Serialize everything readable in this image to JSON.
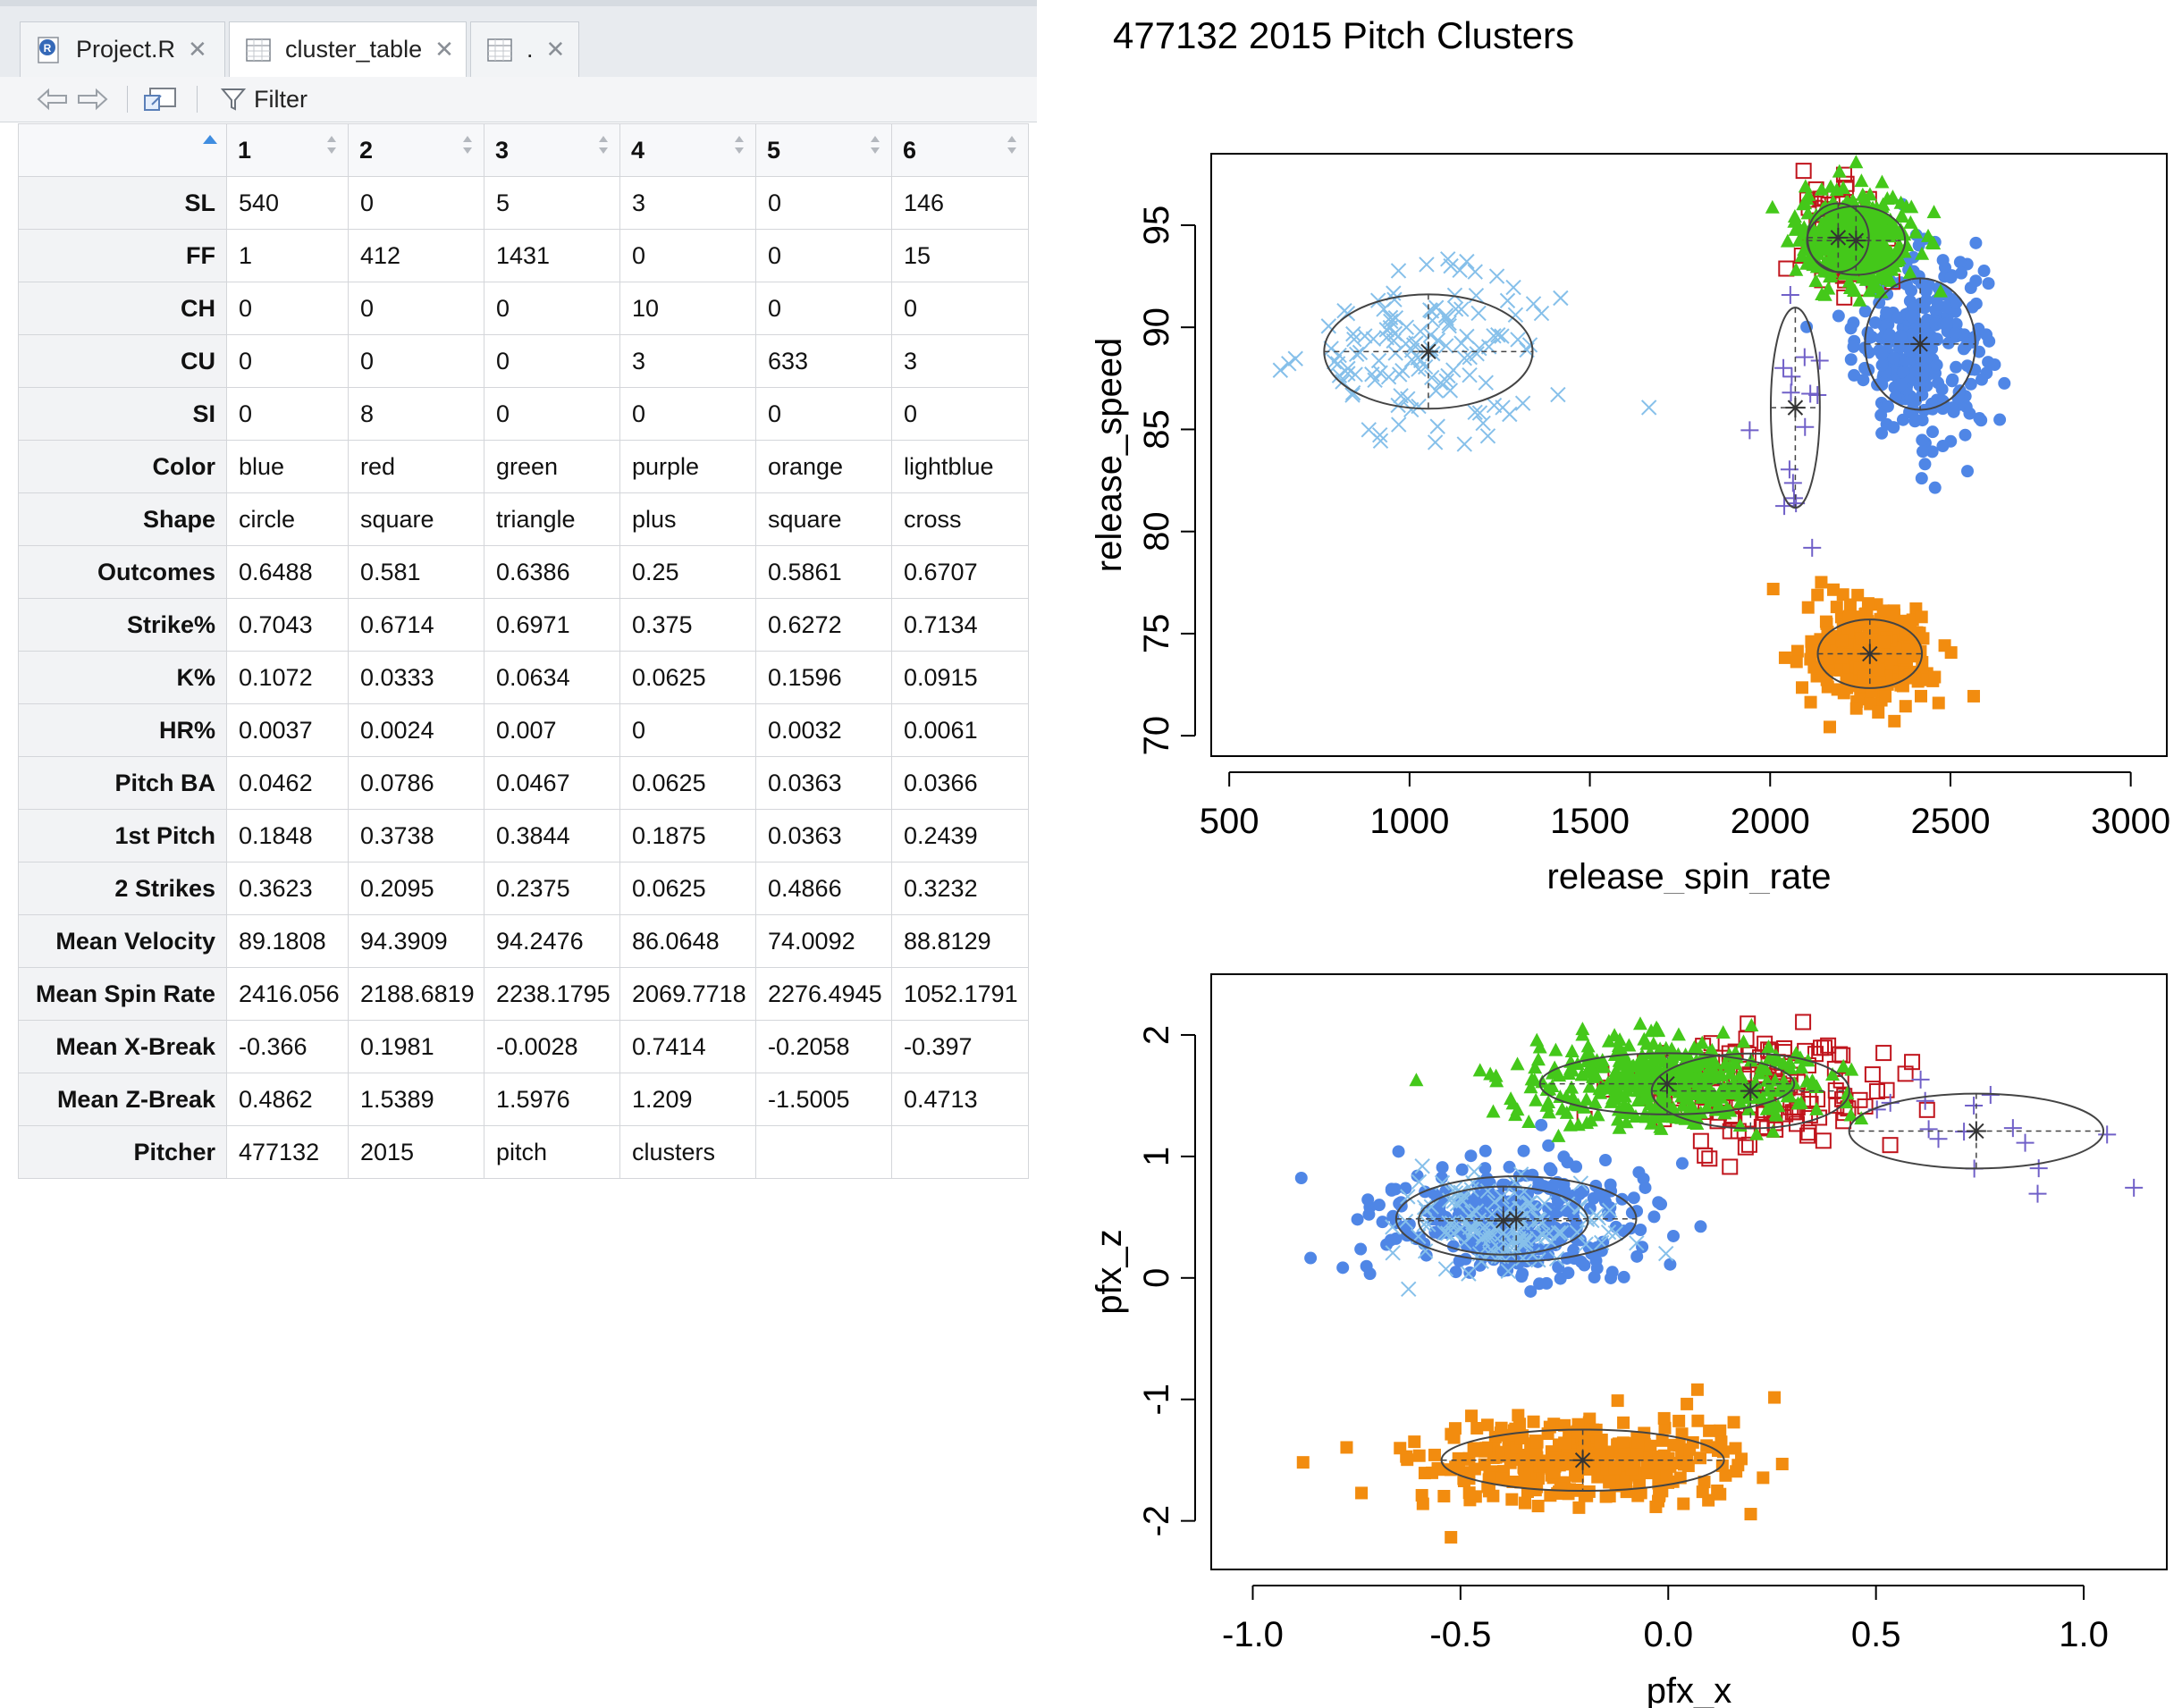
{
  "tabs": [
    {
      "label": "Project.R",
      "icon": "r-file-icon"
    },
    {
      "label": "cluster_table",
      "icon": "table-icon"
    },
    {
      "label": ".",
      "icon": "table-icon"
    }
  ],
  "toolbar": {
    "filter_label": "Filter"
  },
  "table": {
    "columns": [
      "1",
      "2",
      "3",
      "4",
      "5",
      "6"
    ],
    "rows": [
      {
        "label": "SL",
        "values": [
          "540",
          "0",
          "5",
          "3",
          "0",
          "146"
        ]
      },
      {
        "label": "FF",
        "values": [
          "1",
          "412",
          "1431",
          "0",
          "0",
          "15"
        ]
      },
      {
        "label": "CH",
        "values": [
          "0",
          "0",
          "0",
          "10",
          "0",
          "0"
        ]
      },
      {
        "label": "CU",
        "values": [
          "0",
          "0",
          "0",
          "3",
          "633",
          "3"
        ]
      },
      {
        "label": "SI",
        "values": [
          "0",
          "8",
          "0",
          "0",
          "0",
          "0"
        ]
      },
      {
        "label": "Color",
        "values": [
          "blue",
          "red",
          "green",
          "purple",
          "orange",
          "lightblue"
        ]
      },
      {
        "label": "Shape",
        "values": [
          "circle",
          "square",
          "triangle",
          "plus",
          "square",
          "cross"
        ]
      },
      {
        "label": "Outcomes",
        "values": [
          "0.6488",
          "0.581",
          "0.6386",
          "0.25",
          "0.5861",
          "0.6707"
        ]
      },
      {
        "label": "Strike%",
        "values": [
          "0.7043",
          "0.6714",
          "0.6971",
          "0.375",
          "0.6272",
          "0.7134"
        ]
      },
      {
        "label": "K%",
        "values": [
          "0.1072",
          "0.0333",
          "0.0634",
          "0.0625",
          "0.1596",
          "0.0915"
        ]
      },
      {
        "label": "HR%",
        "values": [
          "0.0037",
          "0.0024",
          "0.007",
          "0",
          "0.0032",
          "0.0061"
        ]
      },
      {
        "label": "Pitch BA",
        "values": [
          "0.0462",
          "0.0786",
          "0.0467",
          "0.0625",
          "0.0363",
          "0.0366"
        ]
      },
      {
        "label": "1st Pitch",
        "values": [
          "0.1848",
          "0.3738",
          "0.3844",
          "0.1875",
          "0.0363",
          "0.2439"
        ]
      },
      {
        "label": "2 Strikes",
        "values": [
          "0.3623",
          "0.2095",
          "0.2375",
          "0.0625",
          "0.4866",
          "0.3232"
        ]
      },
      {
        "label": "Mean Velocity",
        "values": [
          "89.1808",
          "94.3909",
          "94.2476",
          "86.0648",
          "74.0092",
          "88.8129"
        ]
      },
      {
        "label": "Mean Spin Rate",
        "values": [
          "2416.056",
          "2188.6819",
          "2238.1795",
          "2069.7718",
          "2276.4945",
          "1052.1791"
        ]
      },
      {
        "label": "Mean X-Break",
        "values": [
          "-0.366",
          "0.1981",
          "-0.0028",
          "0.7414",
          "-0.2058",
          "-0.397"
        ]
      },
      {
        "label": "Mean Z-Break",
        "values": [
          "0.4862",
          "1.5389",
          "1.5976",
          "1.209",
          "-1.5005",
          "0.4713"
        ]
      },
      {
        "label": "Pitcher",
        "values": [
          "477132",
          "2015",
          "pitch",
          "clusters",
          "",
          ""
        ]
      }
    ]
  },
  "chart_data": [
    {
      "type": "scatter",
      "title": "477132 2015 Pitch Clusters",
      "xlabel": "release_spin_rate",
      "ylabel": "release_speed",
      "xlim": [
        450,
        3100
      ],
      "ylim": [
        69,
        98.5
      ],
      "xticks": [
        "500",
        "1000",
        "1500",
        "2000",
        "2500",
        "3000"
      ],
      "yticks": [
        "70",
        "75",
        "80",
        "85",
        "90",
        "95"
      ],
      "grid": false,
      "series": [
        {
          "cluster": "1",
          "color": "#4f86e6",
          "shape": "circle",
          "center": [
            2416.056,
            89.1808
          ],
          "spread": [
            90,
            2.3
          ],
          "n": 300
        },
        {
          "cluster": "2",
          "color": "#c0141c",
          "shape": "square",
          "center": [
            2188.6819,
            94.3909
          ],
          "spread": [
            50,
            1.2
          ],
          "n": 90
        },
        {
          "cluster": "3",
          "color": "#44c81a",
          "shape": "triangle",
          "center": [
            2238.1795,
            94.2476
          ],
          "spread": [
            80,
            1.2
          ],
          "n": 420
        },
        {
          "cluster": "4",
          "color": "#7060c8",
          "shape": "plus",
          "center": [
            2069.7718,
            86.0648
          ],
          "spread": [
            40,
            3.5
          ],
          "n": 16
        },
        {
          "cluster": "5",
          "color": "#f28c0f",
          "shape": "square",
          "center": [
            2276.4945,
            74.0092
          ],
          "spread": [
            85,
            1.2
          ],
          "n": 320
        },
        {
          "cluster": "6",
          "color": "#86c0ea",
          "shape": "cross",
          "center": [
            1052.1791,
            88.8129
          ],
          "spread": [
            170,
            2.0
          ],
          "n": 130
        }
      ]
    },
    {
      "type": "scatter",
      "title": "",
      "xlabel": "pfx_x",
      "ylabel": "pfx_z",
      "xlim": [
        -1.1,
        1.2
      ],
      "ylim": [
        -2.4,
        2.5
      ],
      "xticks": [
        "-1.0",
        "-0.5",
        "0.0",
        "0.5",
        "1.0"
      ],
      "yticks": [
        "-2",
        "-1",
        "0",
        "1",
        "2"
      ],
      "grid": false,
      "series": [
        {
          "cluster": "1",
          "color": "#4f86e6",
          "shape": "circle",
          "center": [
            -0.366,
            0.4862
          ],
          "spread": [
            0.17,
            0.25
          ],
          "n": 300
        },
        {
          "cluster": "2",
          "color": "#c0141c",
          "shape": "square",
          "center": [
            0.1981,
            1.5389
          ],
          "spread": [
            0.14,
            0.22
          ],
          "n": 140
        },
        {
          "cluster": "3",
          "color": "#44c81a",
          "shape": "triangle",
          "center": [
            -0.0028,
            1.5976
          ],
          "spread": [
            0.18,
            0.18
          ],
          "n": 450
        },
        {
          "cluster": "4",
          "color": "#7060c8",
          "shape": "plus",
          "center": [
            0.7414,
            1.209
          ],
          "spread": [
            0.18,
            0.22
          ],
          "n": 16
        },
        {
          "cluster": "5",
          "color": "#f28c0f",
          "shape": "square",
          "center": [
            -0.2058,
            -1.5005
          ],
          "spread": [
            0.2,
            0.18
          ],
          "n": 320
        },
        {
          "cluster": "6",
          "color": "#86c0ea",
          "shape": "cross",
          "center": [
            -0.397,
            0.4713
          ],
          "spread": [
            0.12,
            0.2
          ],
          "n": 130
        }
      ]
    }
  ]
}
